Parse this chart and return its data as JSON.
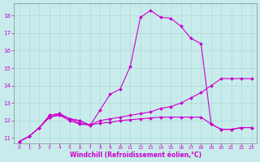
{
  "xlabel": "Windchill (Refroidissement éolien,°C)",
  "xlim": [
    -0.5,
    23.5
  ],
  "ylim": [
    10.7,
    18.7
  ],
  "yticks": [
    11,
    12,
    13,
    14,
    15,
    16,
    17,
    18
  ],
  "xticks": [
    0,
    1,
    2,
    3,
    4,
    5,
    6,
    7,
    8,
    9,
    10,
    11,
    12,
    13,
    14,
    15,
    16,
    17,
    18,
    19,
    20,
    21,
    22,
    23
  ],
  "bg_color": "#c8ecec",
  "grid_color": "#b0d8d8",
  "line_color": "#cc00cc",
  "line_width": 0.8,
  "marker": "D",
  "marker_size": 2.0,
  "curves": [
    {
      "x": [
        0,
        1,
        2,
        3,
        4,
        5,
        6,
        7,
        8,
        9,
        10,
        11,
        12,
        13,
        14,
        15,
        16,
        17,
        18,
        19,
        20,
        21,
        22,
        23
      ],
      "y": [
        10.8,
        11.1,
        11.6,
        12.3,
        12.4,
        12.1,
        12.0,
        11.7,
        12.6,
        13.5,
        13.8,
        15.1,
        17.9,
        18.3,
        17.9,
        17.85,
        17.4,
        16.7,
        16.4,
        11.8,
        11.5,
        11.5,
        11.6,
        11.6
      ]
    },
    {
      "x": [
        0,
        1,
        2,
        3,
        4,
        5,
        6,
        7,
        8,
        9,
        10,
        11,
        12,
        13,
        14,
        15,
        16,
        17,
        18,
        19,
        20,
        21,
        22,
        23
      ],
      "y": [
        10.8,
        11.1,
        11.6,
        12.2,
        12.3,
        12.0,
        11.8,
        11.75,
        12.0,
        12.1,
        12.2,
        12.3,
        12.4,
        12.5,
        12.7,
        12.8,
        13.0,
        13.3,
        13.6,
        14.0,
        14.4,
        14.4,
        14.4,
        14.4
      ]
    },
    {
      "x": [
        0,
        1,
        2,
        3,
        4,
        5,
        6,
        7,
        8,
        9,
        10,
        11,
        12,
        13,
        14,
        15,
        16,
        17,
        18,
        19,
        20,
        21,
        22,
        23
      ],
      "y": [
        10.8,
        11.1,
        11.6,
        12.2,
        12.35,
        12.1,
        11.85,
        11.75,
        11.85,
        11.9,
        12.0,
        12.05,
        12.1,
        12.15,
        12.2,
        12.2,
        12.2,
        12.2,
        12.2,
        11.8,
        11.5,
        11.5,
        11.6,
        11.6
      ]
    },
    {
      "x": [
        3,
        4,
        5,
        6,
        7
      ],
      "y": [
        12.3,
        12.4,
        12.1,
        12.0,
        11.75
      ]
    }
  ]
}
